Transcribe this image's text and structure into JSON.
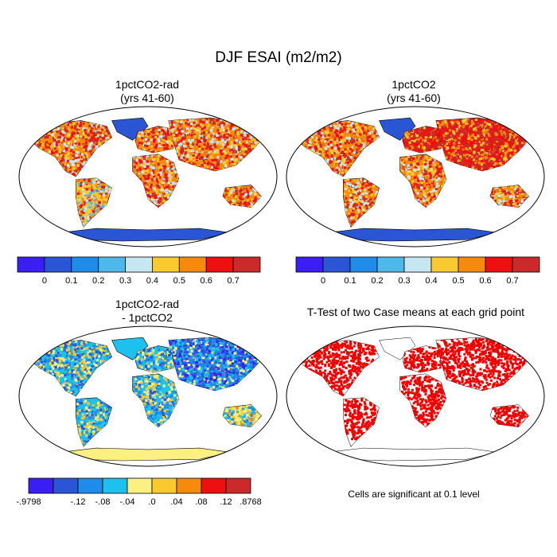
{
  "figure": {
    "title": "DJF ESAI (m2/m2)",
    "note": "Cells are significant at 0.1 level"
  },
  "colors": {
    "abs_scale": [
      "#3a1ef4",
      "#2a56d6",
      "#1e8ce8",
      "#4eb8e8",
      "#c6e6f2",
      "#f8ca30",
      "#f68a0c",
      "#ee1010",
      "#cc2a2a"
    ],
    "diff_scale": [
      "#3a1ef4",
      "#2a56d6",
      "#1e8ce8",
      "#1ec0ee",
      "#fdf082",
      "#f8ca30",
      "#f68a0c",
      "#ee1010",
      "#cc2a2a"
    ],
    "ttest": "#ee0000",
    "ocean": "#ffffff",
    "outline": "#000000"
  },
  "panels": [
    {
      "id": "p1",
      "title_lines": [
        "1pctCO2-rad",
        "(yrs 41-60)"
      ],
      "colorbar": {
        "labels": [
          "0",
          "0.1",
          "0.2",
          "0.3",
          "0.4",
          "0.5",
          "0.6",
          "0.7"
        ]
      }
    },
    {
      "id": "p2",
      "title_lines": [
        "1pctCO2",
        "(yrs 41-60)"
      ],
      "colorbar": {
        "labels": [
          "0",
          "0.1",
          "0.2",
          "0.3",
          "0.4",
          "0.5",
          "0.6",
          "0.7"
        ]
      }
    },
    {
      "id": "p3",
      "title_lines": [
        "1pctCO2-rad",
        "- 1pctCO2"
      ],
      "colorbar": {
        "labels": [
          "-.9798",
          "-.12",
          "-.08",
          "-.04",
          ".0",
          ".04",
          ".08",
          ".12",
          ".8768"
        ]
      }
    },
    {
      "id": "p4",
      "title_lines": [
        "T-Test of two Case means at each grid point"
      ]
    }
  ],
  "chart_data": [
    {
      "type": "heatmap",
      "title": "1pctCO2-rad (yrs 41-60)",
      "projection": "Robinson world map",
      "colorbar_levels": [
        0,
        0.1,
        0.2,
        0.3,
        0.4,
        0.5,
        0.6,
        0.7
      ],
      "regions": [
        {
          "name": "Antarctica",
          "level_index": 1
        },
        {
          "name": "Greenland",
          "level_index": 1
        },
        {
          "name": "North America",
          "level_index": 6
        },
        {
          "name": "South America",
          "level_index": 5
        },
        {
          "name": "Africa",
          "level_index": 6
        },
        {
          "name": "Europe",
          "level_index": 6
        },
        {
          "name": "Asia",
          "level_index": 6
        },
        {
          "name": "Australia",
          "level_index": 6
        }
      ]
    },
    {
      "type": "heatmap",
      "title": "1pctCO2 (yrs 41-60)",
      "projection": "Robinson world map",
      "colorbar_levels": [
        0,
        0.1,
        0.2,
        0.3,
        0.4,
        0.5,
        0.6,
        0.7
      ],
      "regions": [
        {
          "name": "Antarctica",
          "level_index": 1
        },
        {
          "name": "Greenland",
          "level_index": 1
        },
        {
          "name": "North America",
          "level_index": 6
        },
        {
          "name": "South America",
          "level_index": 6
        },
        {
          "name": "Africa",
          "level_index": 6
        },
        {
          "name": "Europe",
          "level_index": 7
        },
        {
          "name": "Asia",
          "level_index": 7
        },
        {
          "name": "Australia",
          "level_index": 6
        }
      ]
    },
    {
      "type": "heatmap",
      "title": "1pctCO2-rad - 1pctCO2",
      "projection": "Robinson world map",
      "colorbar_levels": [
        -0.9798,
        -0.12,
        -0.08,
        -0.04,
        0.0,
        0.04,
        0.08,
        0.12,
        0.8768
      ],
      "regions": [
        {
          "name": "Antarctica",
          "level_index": 4
        },
        {
          "name": "Greenland",
          "level_index": 3
        },
        {
          "name": "North America",
          "level_index": 3
        },
        {
          "name": "South America",
          "level_index": 3
        },
        {
          "name": "Africa",
          "level_index": 3
        },
        {
          "name": "Europe",
          "level_index": 3
        },
        {
          "name": "Asia",
          "level_index": 2
        },
        {
          "name": "Australia",
          "level_index": 4
        }
      ]
    },
    {
      "type": "heatmap",
      "title": "T-Test of two Case means at each grid point",
      "projection": "Robinson world map",
      "significance_level": 0.1,
      "significant_regions": [
        "North America",
        "South America",
        "Africa",
        "Europe",
        "Asia",
        "Australia"
      ],
      "not_significant_regions": [
        "Antarctica",
        "Greenland"
      ]
    }
  ]
}
